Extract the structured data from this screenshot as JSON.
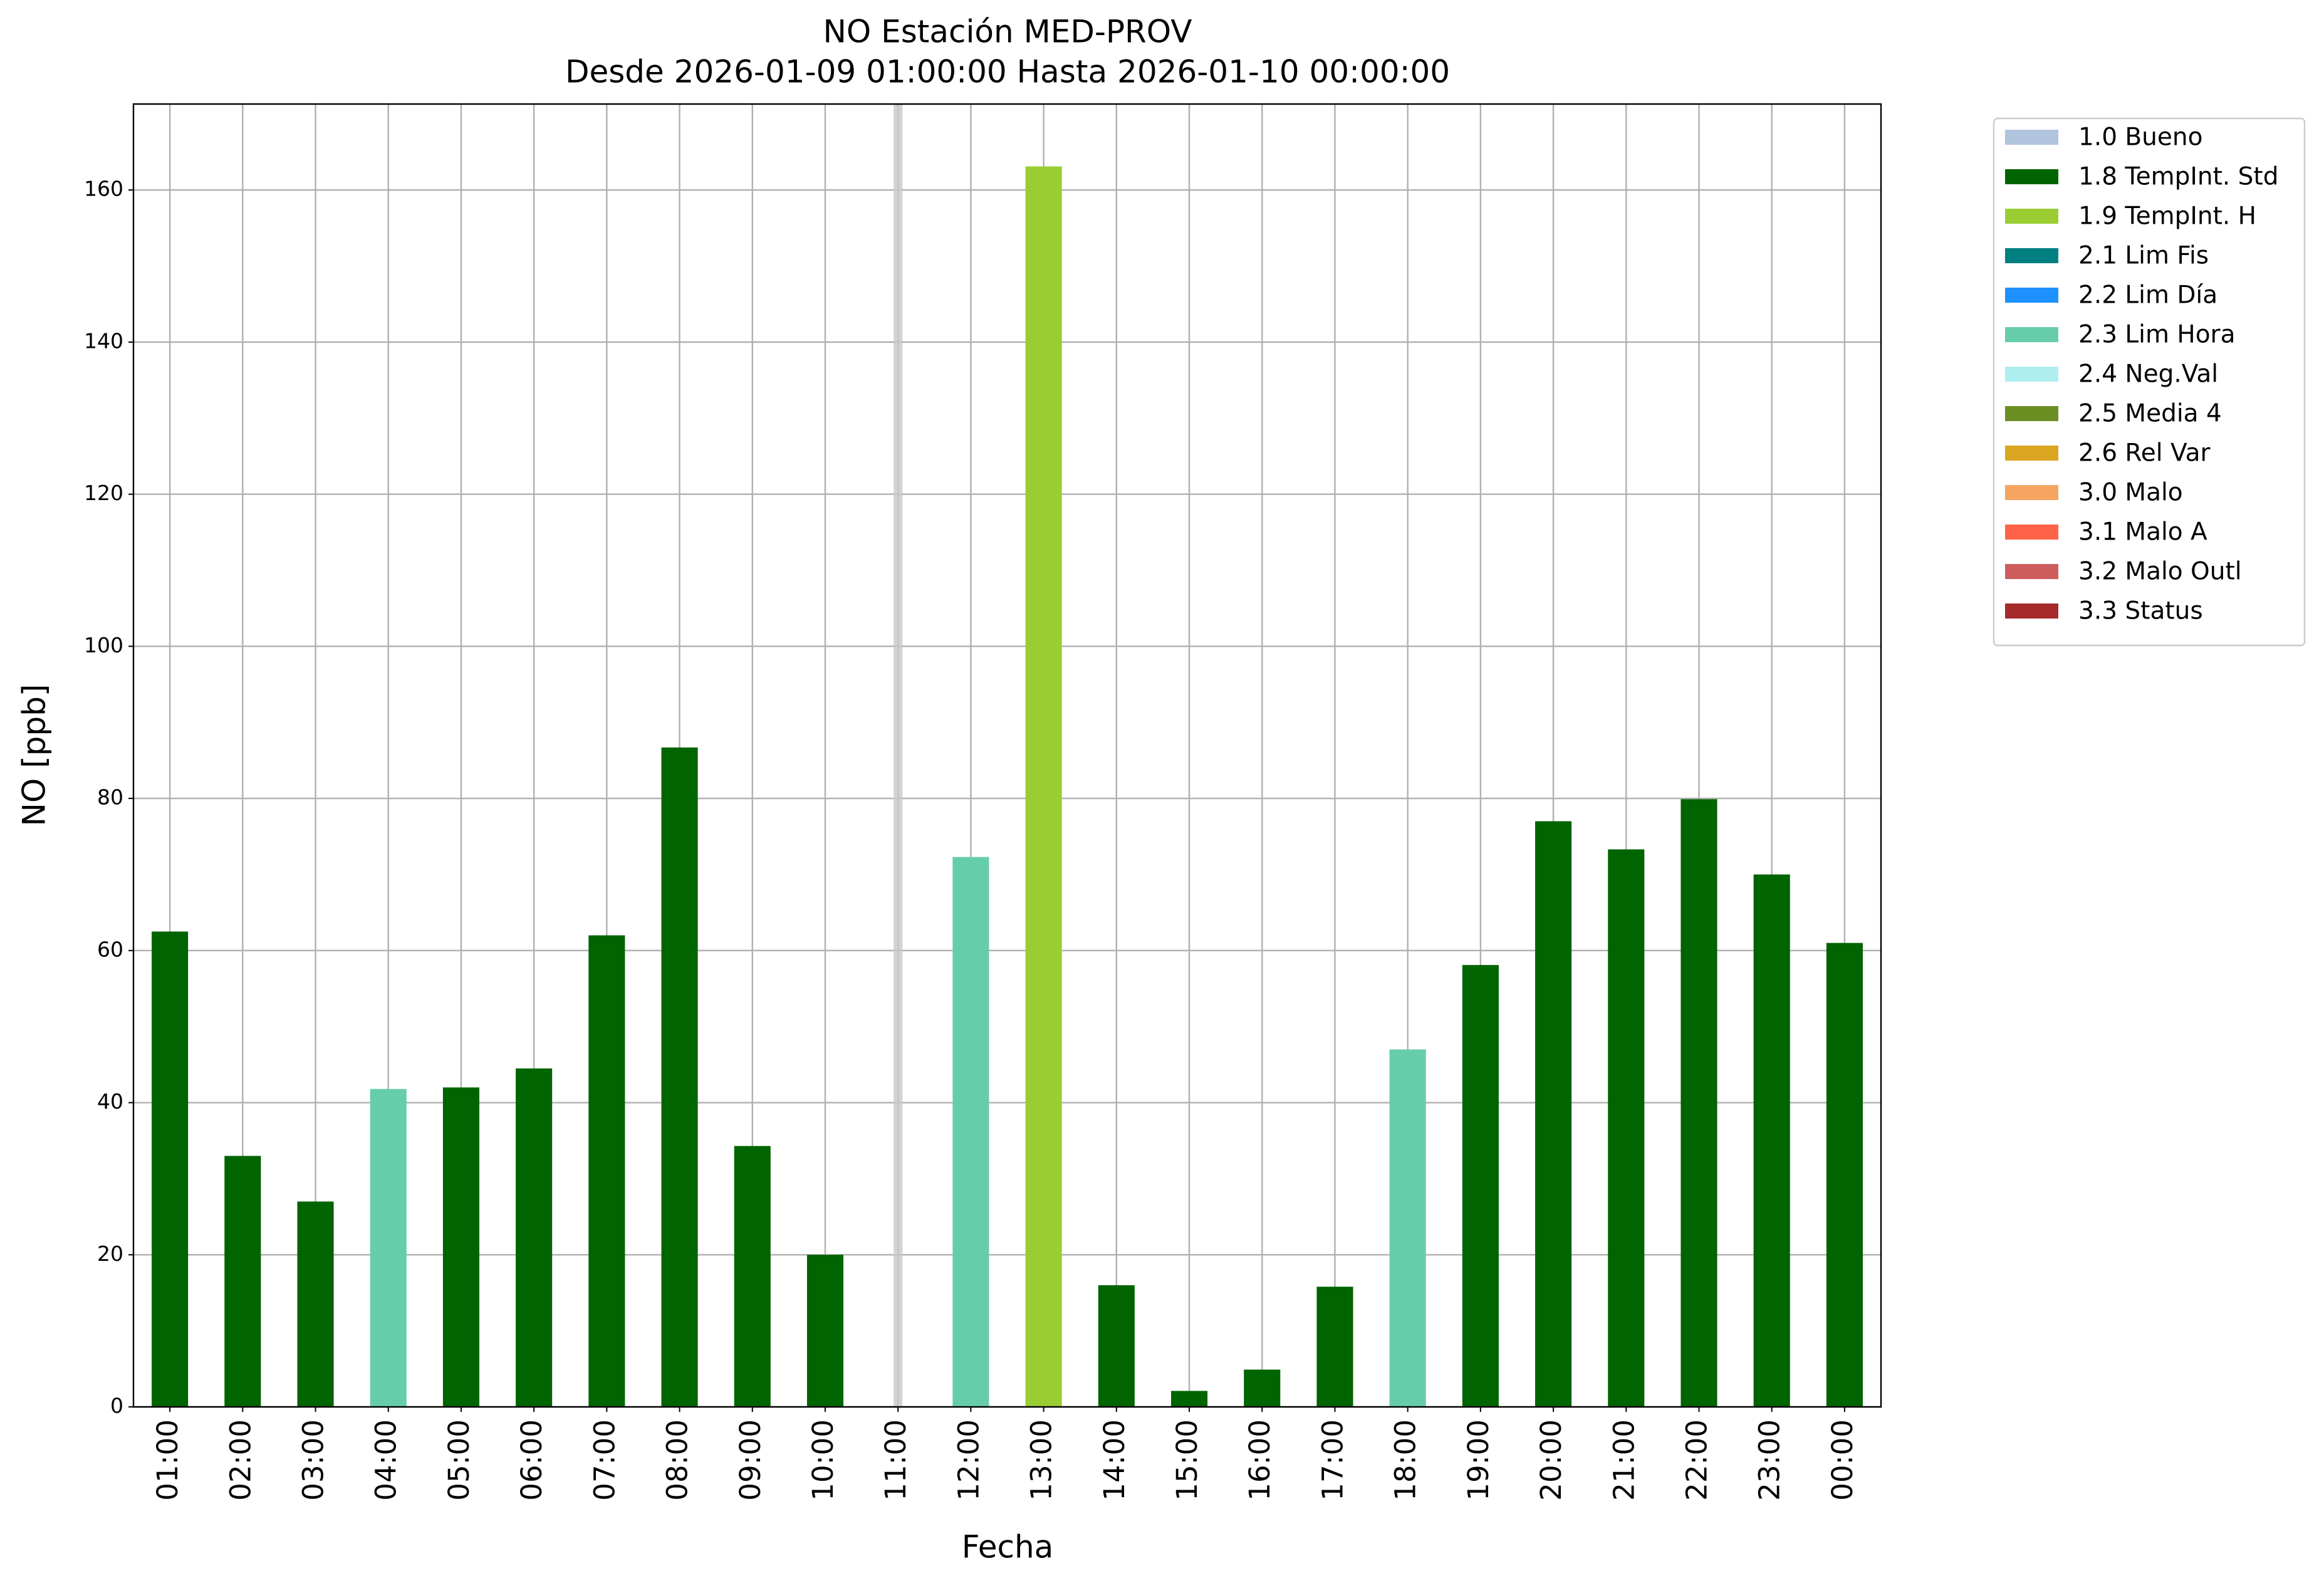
{
  "chart_data": {
    "type": "bar",
    "stacked": true,
    "title": "NO Estación MED-PROV",
    "subtitle": "Desde 2026-01-09 01:00:00 Hasta 2026-01-10 00:00:00",
    "x_label": "Fecha",
    "y_label": "NO [ppb]",
    "categories": [
      "01:00",
      "02:00",
      "03:00",
      "04:00",
      "05:00",
      "06:00",
      "07:00",
      "08:00",
      "09:00",
      "10:00",
      "11:00",
      "12:00",
      "13:00",
      "14:00",
      "15:00",
      "16:00",
      "17:00",
      "18:00",
      "19:00",
      "20:00",
      "21:00",
      "22:00",
      "23:00",
      "00:00"
    ],
    "series": [
      {
        "name": "1.0 Bueno",
        "color": "#b0c4de",
        "values": [
          null,
          null,
          null,
          null,
          null,
          null,
          null,
          null,
          null,
          null,
          null,
          null,
          null,
          null,
          null,
          null,
          null,
          null,
          null,
          null,
          null,
          null,
          null,
          null
        ]
      },
      {
        "name": "1.8 TempInt. Std",
        "color": "#006400",
        "values": [
          62.5,
          33,
          27,
          null,
          42,
          44.5,
          62,
          86.7,
          34.3,
          20,
          null,
          null,
          null,
          16,
          2.1,
          4.9,
          15.8,
          null,
          58.1,
          77,
          73.3,
          79.9,
          70,
          61
        ]
      },
      {
        "name": "1.9 TempInt. H",
        "color": "#9acd32",
        "values": [
          null,
          null,
          null,
          null,
          null,
          null,
          null,
          null,
          null,
          null,
          null,
          null,
          163.1,
          null,
          null,
          null,
          null,
          null,
          null,
          null,
          null,
          null,
          null,
          null
        ]
      },
      {
        "name": "2.1 Lim Fis",
        "color": "#008080",
        "values": [
          null,
          null,
          null,
          null,
          null,
          null,
          null,
          null,
          null,
          null,
          null,
          null,
          null,
          null,
          null,
          null,
          null,
          null,
          null,
          null,
          null,
          null,
          null,
          null
        ]
      },
      {
        "name": "2.2 Lim Día",
        "color": "#1e90ff",
        "values": [
          null,
          null,
          null,
          null,
          null,
          null,
          null,
          null,
          null,
          null,
          null,
          null,
          null,
          null,
          null,
          null,
          null,
          null,
          null,
          null,
          null,
          null,
          null,
          null
        ]
      },
      {
        "name": "2.3 Lim Hora",
        "color": "#66cdaa",
        "values": [
          null,
          null,
          null,
          41.8,
          null,
          null,
          null,
          null,
          null,
          null,
          null,
          72.3,
          null,
          null,
          null,
          null,
          null,
          47,
          null,
          null,
          null,
          null,
          null,
          null
        ]
      },
      {
        "name": "2.4 Neg.Val",
        "color": "#afeeee",
        "values": [
          null,
          null,
          null,
          null,
          null,
          null,
          null,
          null,
          null,
          null,
          null,
          null,
          null,
          null,
          null,
          null,
          null,
          null,
          null,
          null,
          null,
          null,
          null,
          null
        ]
      },
      {
        "name": "2.5 Media 4",
        "color": "#6b8e23",
        "values": [
          null,
          null,
          null,
          null,
          null,
          null,
          null,
          null,
          null,
          null,
          null,
          null,
          null,
          null,
          null,
          null,
          null,
          null,
          null,
          null,
          null,
          null,
          null,
          null
        ]
      },
      {
        "name": "2.6 Rel Var",
        "color": "#daa520",
        "values": [
          null,
          null,
          null,
          null,
          null,
          null,
          null,
          null,
          null,
          null,
          null,
          null,
          null,
          null,
          null,
          null,
          null,
          null,
          null,
          null,
          null,
          null,
          null,
          null
        ]
      },
      {
        "name": "3.0 Malo",
        "color": "#f4a460",
        "values": [
          null,
          null,
          null,
          null,
          null,
          null,
          null,
          null,
          null,
          null,
          null,
          null,
          null,
          null,
          null,
          null,
          null,
          null,
          null,
          null,
          null,
          null,
          null,
          null
        ]
      },
      {
        "name": "3.1 Malo A",
        "color": "#ff6347",
        "values": [
          null,
          null,
          null,
          null,
          null,
          null,
          null,
          null,
          null,
          null,
          null,
          null,
          null,
          null,
          null,
          null,
          null,
          null,
          null,
          null,
          null,
          null,
          null,
          null
        ]
      },
      {
        "name": "3.2 Malo Outl",
        "color": "#cd5c5c",
        "values": [
          null,
          null,
          null,
          null,
          null,
          null,
          null,
          null,
          null,
          null,
          null,
          null,
          null,
          null,
          null,
          null,
          null,
          null,
          null,
          null,
          null,
          null,
          null,
          null
        ]
      },
      {
        "name": "3.3 Status",
        "color": "#a52a2a",
        "values": [
          null,
          null,
          null,
          null,
          null,
          null,
          null,
          null,
          null,
          null,
          null,
          null,
          null,
          null,
          null,
          null,
          null,
          null,
          null,
          null,
          null,
          null,
          null,
          null
        ]
      }
    ],
    "ylim": [
      0,
      171.3
    ],
    "yticks": [
      0,
      20,
      40,
      60,
      80,
      100,
      120,
      140,
      160
    ],
    "grid": true,
    "legend": "outside upper right"
  }
}
